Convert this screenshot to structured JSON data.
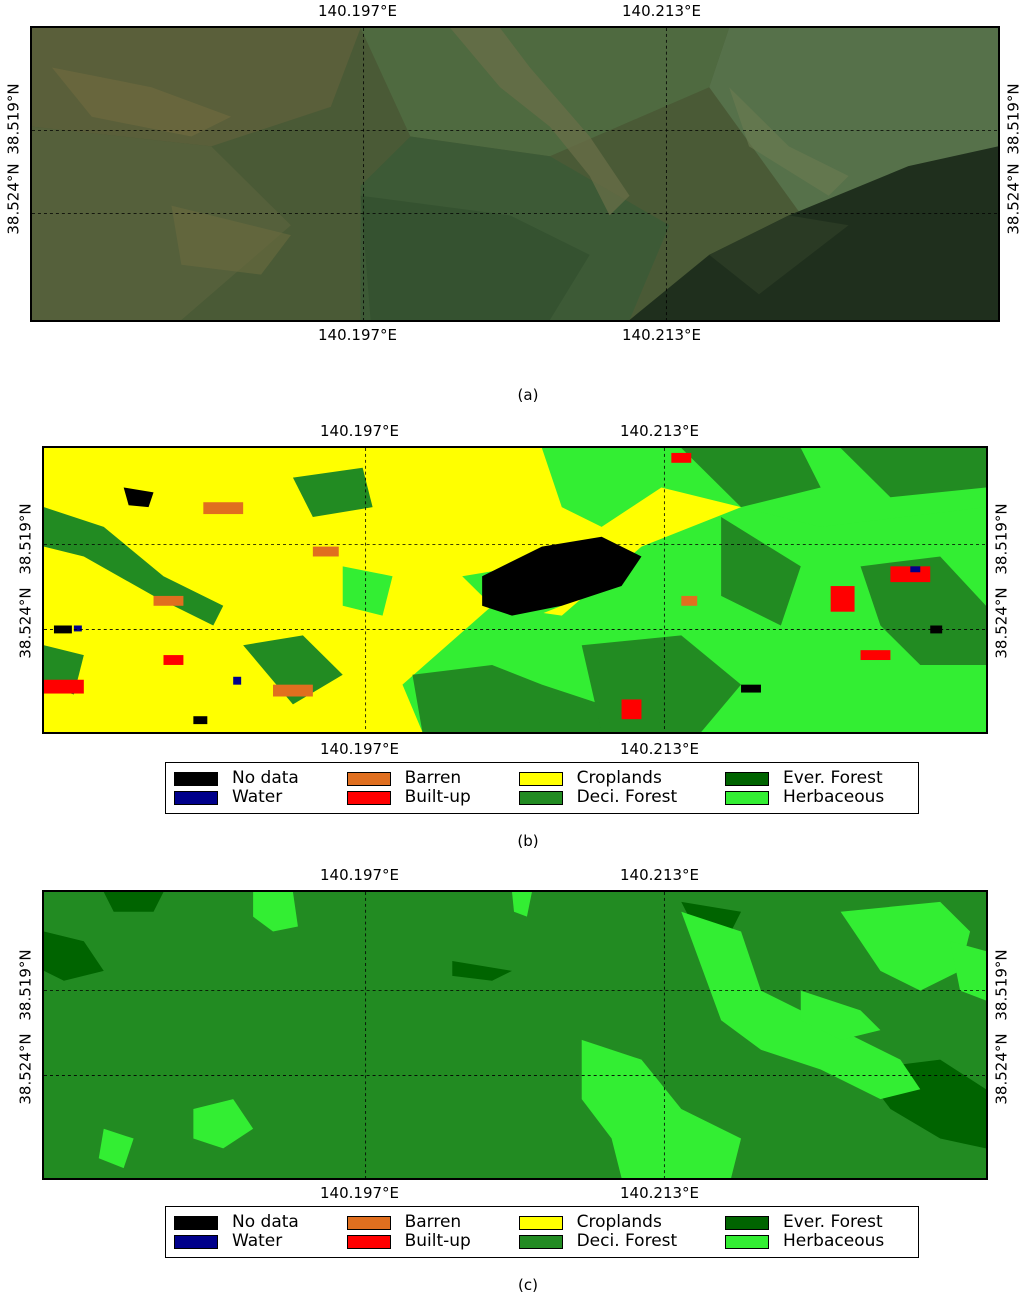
{
  "panels": [
    {
      "id": "a",
      "caption": "(a)",
      "kind": "satellite",
      "lon_labels": [
        "140.197°E",
        "140.213°E"
      ],
      "lat_labels": [
        "38.519°N",
        "38.524°N"
      ]
    },
    {
      "id": "b",
      "caption": "(b)",
      "kind": "classification",
      "lon_labels": [
        "140.197°E",
        "140.213°E"
      ],
      "lat_labels": [
        "38.519°N",
        "38.524°N"
      ]
    },
    {
      "id": "c",
      "caption": "(c)",
      "kind": "classification",
      "lon_labels": [
        "140.197°E",
        "140.213°E"
      ],
      "lat_labels": [
        "38.519°N",
        "38.524°N"
      ]
    }
  ],
  "legend": [
    {
      "label": "No data",
      "color": "#000000"
    },
    {
      "label": "Water",
      "color": "#00008b"
    },
    {
      "label": "Barren",
      "color": "#e06f1f"
    },
    {
      "label": "Built-up",
      "color": "#ff0000"
    },
    {
      "label": "Croplands",
      "color": "#ffff00"
    },
    {
      "label": "Deci. Forest",
      "color": "#228b22"
    },
    {
      "label": "Ever. Forest",
      "color": "#006400"
    },
    {
      "label": "Herbaceous",
      "color": "#33ee33"
    }
  ]
}
